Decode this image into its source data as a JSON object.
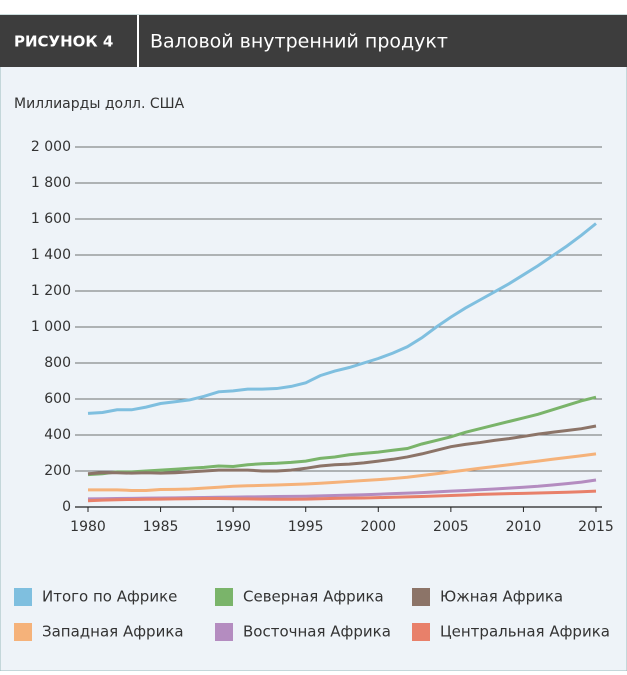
{
  "header": {
    "label": "РИСУНОК 4",
    "title": "Валовой внутренний продукт"
  },
  "chart_data": {
    "type": "line",
    "ylabel": "Миллиарды долл. США",
    "x": [
      1980,
      1981,
      1982,
      1983,
      1984,
      1985,
      1986,
      1987,
      1988,
      1989,
      1990,
      1991,
      1992,
      1993,
      1994,
      1995,
      1996,
      1997,
      1998,
      1999,
      2000,
      2001,
      2002,
      2003,
      2004,
      2005,
      2006,
      2007,
      2008,
      2009,
      2010,
      2011,
      2012,
      2013,
      2014,
      2015
    ],
    "xlim": [
      1980,
      2015
    ],
    "xticks": [
      1980,
      1985,
      1990,
      1995,
      2000,
      2005,
      2010,
      2015
    ],
    "ylim": [
      0,
      2000
    ],
    "yticks": [
      0,
      200,
      400,
      600,
      800,
      {
        "value": 1000,
        "label": "1 000"
      },
      {
        "value": 1200,
        "label": "1 200"
      },
      {
        "value": 1400,
        "label": "1 400"
      },
      {
        "value": 1600,
        "label": "1 600"
      },
      {
        "value": 1800,
        "label": "1 800"
      },
      {
        "value": 2000,
        "label": "2 000"
      }
    ],
    "grid": true,
    "series": [
      {
        "name": "Итого по Африке",
        "color": "#7fbfdf",
        "values": [
          520,
          525,
          540,
          540,
          555,
          575,
          585,
          595,
          615,
          640,
          645,
          655,
          655,
          658,
          670,
          690,
          730,
          755,
          775,
          800,
          825,
          855,
          890,
          940,
          1000,
          1055,
          1105,
          1150,
          1195,
          1240,
          1290,
          1340,
          1395,
          1450,
          1510,
          1575
        ]
      },
      {
        "name": "Северная Африка",
        "color": "#7ab46a",
        "values": [
          180,
          185,
          195,
          195,
          200,
          205,
          210,
          215,
          220,
          228,
          225,
          235,
          240,
          243,
          248,
          255,
          270,
          278,
          290,
          298,
          305,
          315,
          325,
          350,
          370,
          390,
          415,
          435,
          455,
          475,
          495,
          515,
          540,
          565,
          590,
          610
        ]
      },
      {
        "name": "Южная Африка",
        "color": "#8c7468",
        "values": [
          185,
          190,
          190,
          188,
          190,
          188,
          190,
          195,
          200,
          205,
          205,
          205,
          200,
          200,
          205,
          215,
          228,
          235,
          238,
          245,
          255,
          265,
          278,
          295,
          315,
          335,
          348,
          358,
          370,
          380,
          392,
          405,
          415,
          425,
          435,
          450
        ]
      },
      {
        "name": "Западная Африка",
        "color": "#f5b27a",
        "values": [
          95,
          95,
          95,
          92,
          92,
          97,
          98,
          100,
          105,
          110,
          115,
          118,
          120,
          122,
          125,
          128,
          132,
          137,
          142,
          147,
          152,
          158,
          165,
          175,
          185,
          195,
          205,
          215,
          225,
          235,
          245,
          255,
          265,
          275,
          285,
          295
        ]
      },
      {
        "name": "Восточная Африка",
        "color": "#b48cc0",
        "values": [
          45,
          46,
          47,
          48,
          49,
          50,
          51,
          52,
          53,
          54,
          55,
          56,
          57,
          58,
          59,
          60,
          62,
          64,
          66,
          68,
          71,
          74,
          77,
          80,
          84,
          88,
          92,
          96,
          100,
          105,
          110,
          115,
          122,
          130,
          138,
          150
        ]
      },
      {
        "name": "Центральная Африка",
        "color": "#e8806a",
        "values": [
          35,
          38,
          40,
          42,
          43,
          44,
          45,
          46,
          47,
          47,
          46,
          45,
          44,
          43,
          43,
          44,
          46,
          48,
          49,
          50,
          52,
          54,
          56,
          58,
          61,
          64,
          67,
          70,
          72,
          74,
          76,
          78,
          80,
          82,
          85,
          88
        ]
      }
    ]
  }
}
